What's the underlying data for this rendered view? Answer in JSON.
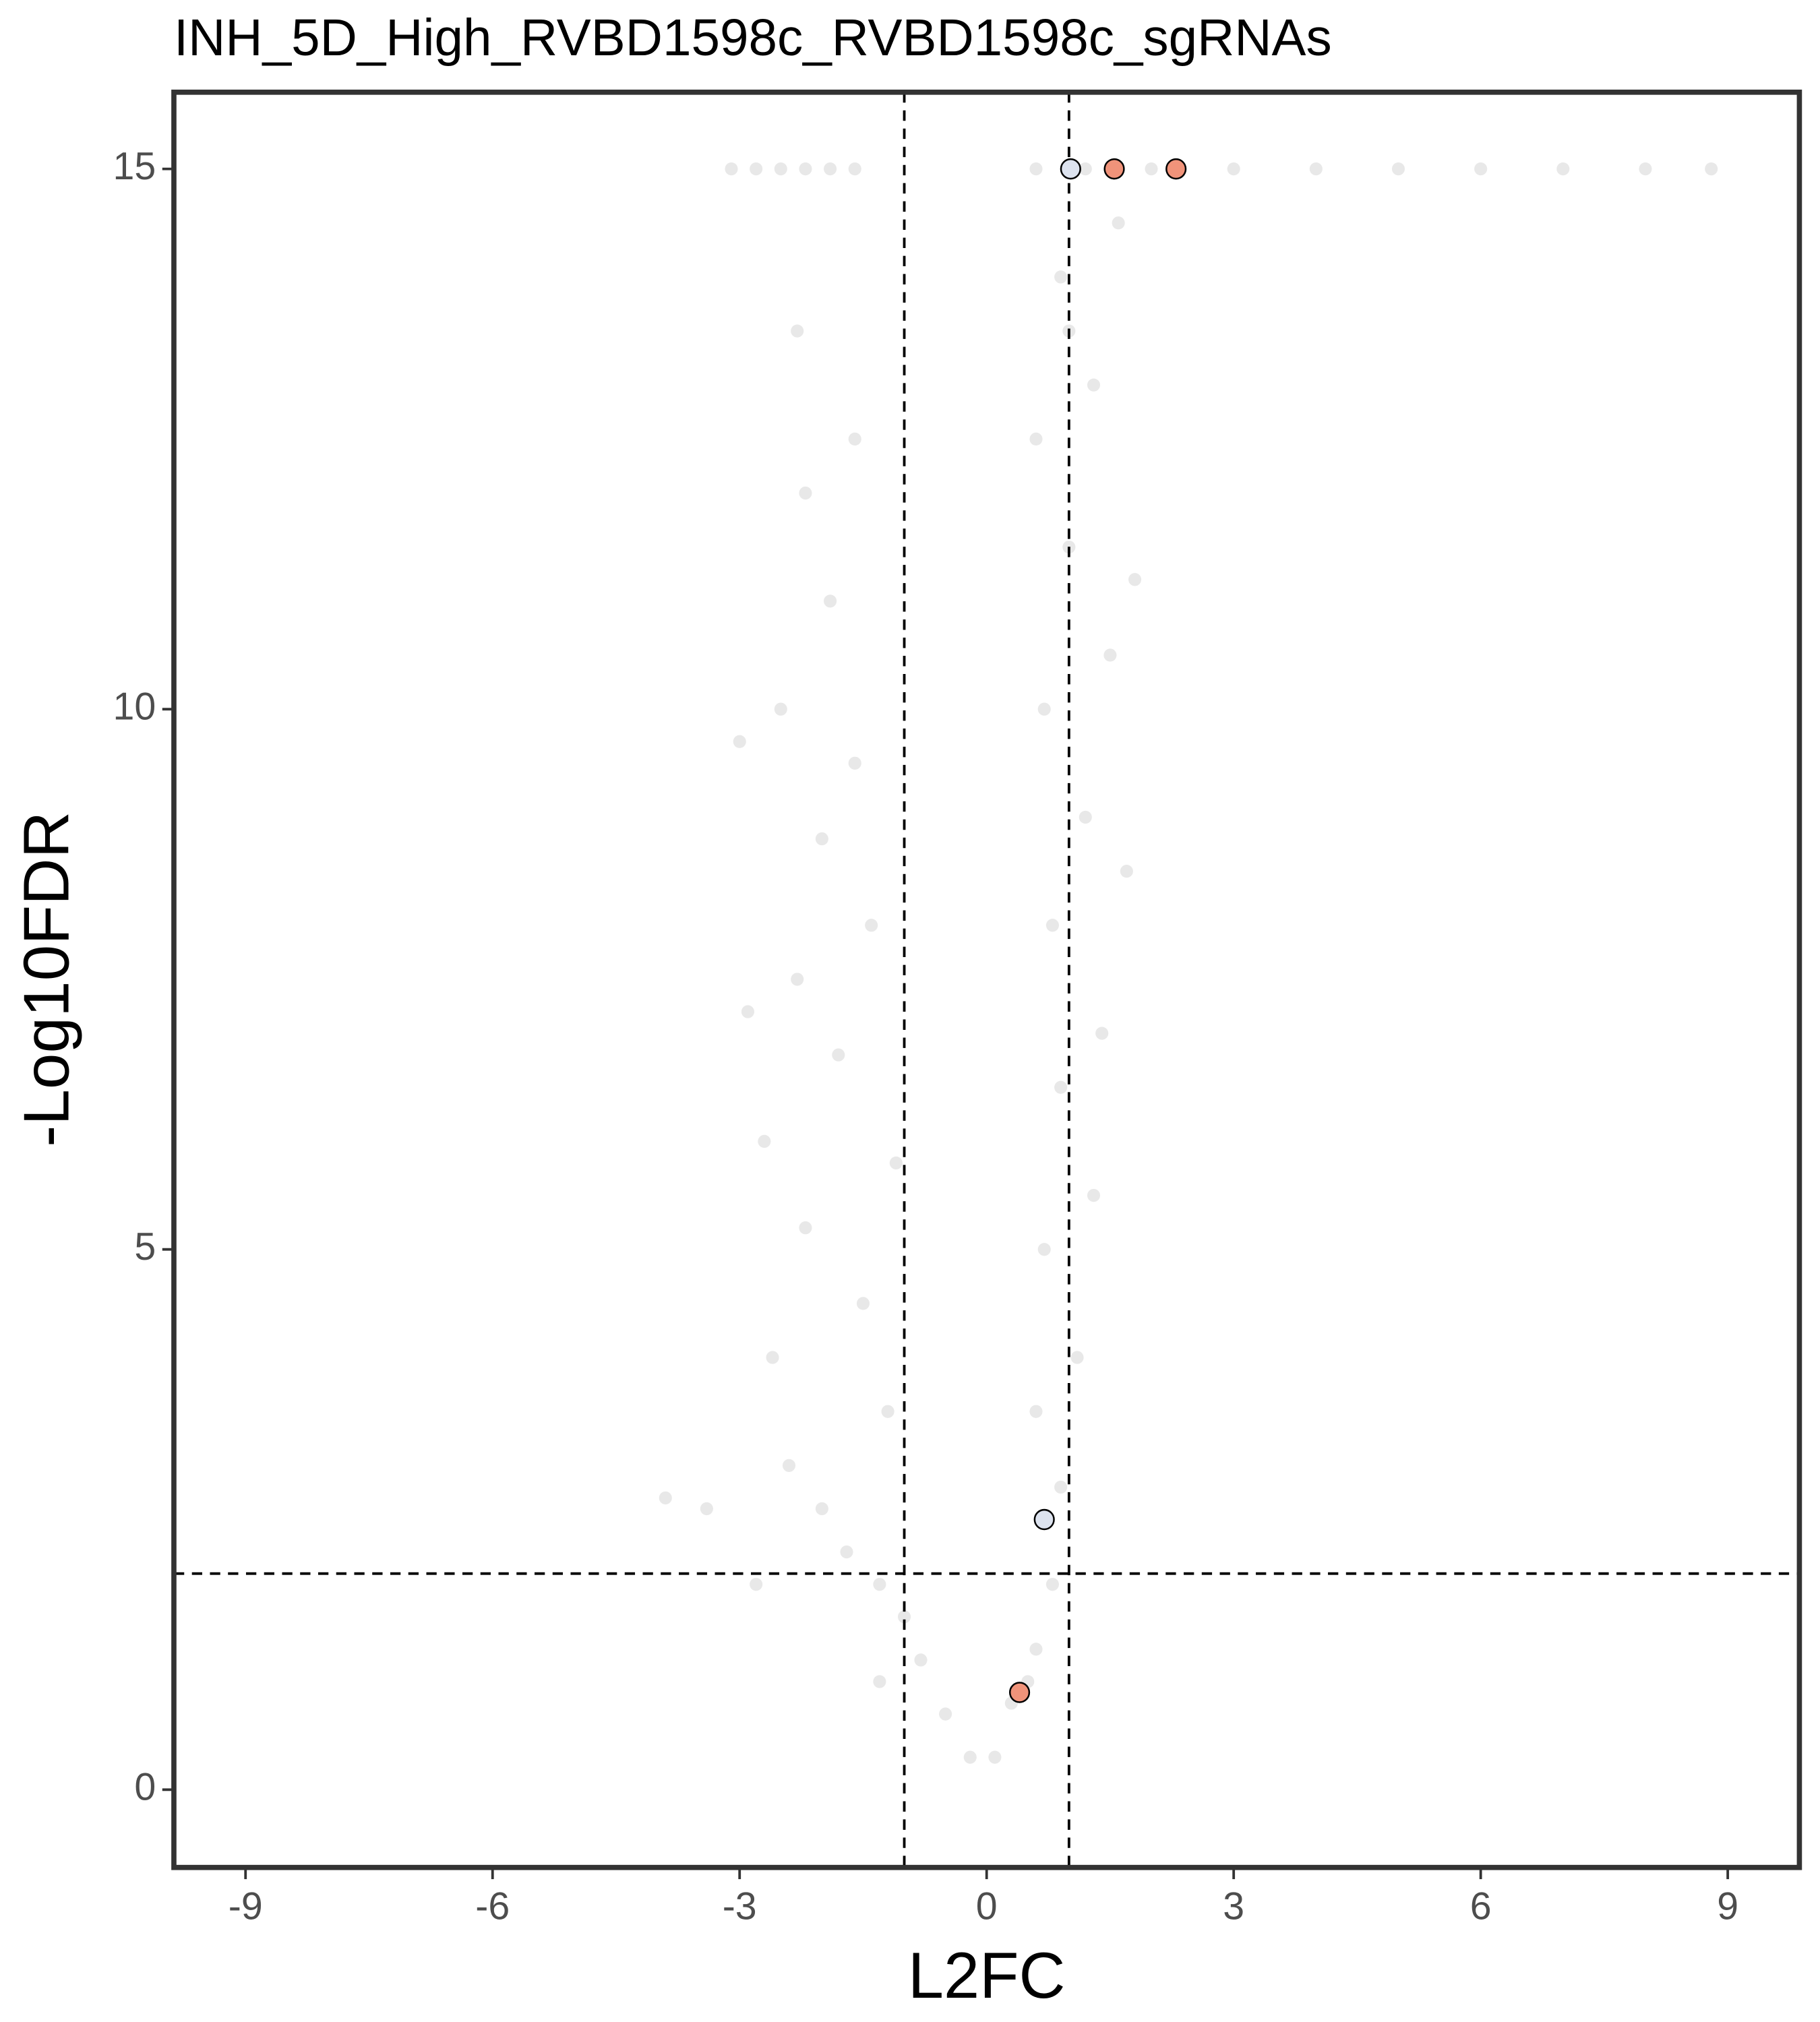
{
  "chart_data": {
    "type": "scatter",
    "title": "INH_5D_High_RVBD1598c_RVBD1598c_sgRNAs",
    "x_label": "L2FC",
    "y_label": "-Log10FDR",
    "xlim": [
      -9.87,
      9.87
    ],
    "ylim": [
      -0.72,
      15.71
    ],
    "xticks": [
      -9,
      -6,
      -3,
      0,
      3,
      6,
      9
    ],
    "yticks": [
      0,
      5,
      10,
      15
    ],
    "grid": false,
    "vlines": [
      -1,
      1
    ],
    "hline": 2,
    "series": [
      {
        "color": "#bdbdbd",
        "opacity": 0.35,
        "x": [
          -3.1,
          -2.8,
          -2.5,
          -2.2,
          -1.9,
          -1.6,
          0.6,
          1.2,
          2,
          3,
          4,
          5,
          6,
          7,
          8,
          8.8,
          -0.2,
          -0.5,
          -0.8,
          -1.0,
          -1.3,
          -1.7,
          -2.0,
          -2.4,
          -1.2,
          -2.6,
          -1.5,
          -2.2,
          -1.1,
          -2.7,
          -1.8,
          -2.3,
          -1.4,
          -2.9,
          -2.0,
          -1.6,
          -2.5,
          -1.9,
          -2.2,
          -1.6,
          -2.3,
          -3.0,
          -3.9,
          -3.4,
          -2.8,
          -1.3,
          0.1,
          0.3,
          0.6,
          0.8,
          0.9,
          0.6,
          1.1,
          0.7,
          1.3,
          0.9,
          1.4,
          0.8,
          1.2,
          0.7,
          1.5,
          1.0,
          0.6,
          1.3,
          0.9,
          1.6,
          1.8,
          1.7,
          0.5,
          1.0
        ],
        "y": [
          15,
          15,
          15,
          15,
          15,
          15,
          15,
          15,
          15,
          15,
          15,
          15,
          15,
          15,
          15,
          15,
          0.3,
          0.7,
          1.2,
          1.6,
          1.9,
          2.2,
          2.6,
          3.0,
          3.5,
          4.0,
          4.5,
          5.2,
          5.8,
          6.0,
          6.8,
          7.5,
          8.0,
          7.2,
          8.8,
          9.5,
          10.0,
          11.0,
          12.0,
          12.5,
          13.5,
          9.7,
          2.7,
          2.6,
          1.9,
          1.0,
          0.3,
          0.8,
          1.3,
          1.9,
          2.8,
          3.5,
          4.0,
          5.0,
          5.5,
          6.5,
          7.0,
          8.0,
          9.0,
          10.0,
          10.5,
          11.5,
          12.5,
          13.0,
          14.0,
          14.5,
          11.2,
          8.5,
          1.0,
          13.5
        ]
      },
      {
        "color": "#f0937a",
        "opacity": 1,
        "x": [
          1.55,
          2.3,
          0.4
        ],
        "y": [
          15,
          15,
          0.9
        ]
      },
      {
        "color": "#dde3ef",
        "opacity": 1,
        "x": [
          1.02,
          0.7
        ],
        "y": [
          15,
          2.5
        ]
      }
    ]
  }
}
